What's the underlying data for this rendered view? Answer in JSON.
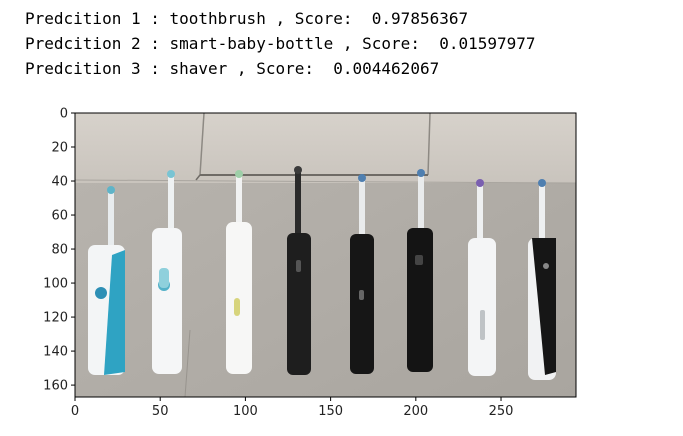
{
  "output": {
    "lines": [
      "Predcition 1 : toothbrush , Score:  0.97856367",
      "Predcition 2 : smart-baby-bottle , Score:  0.01597977",
      "Predcition 3 : shaver , Score:  0.004462067"
    ]
  },
  "chart_data": {
    "type": "image",
    "xlim": [
      0,
      294
    ],
    "ylim": [
      167,
      0
    ],
    "x_ticks": [
      0,
      50,
      100,
      150,
      200,
      250
    ],
    "y_ticks": [
      0,
      20,
      40,
      60,
      80,
      100,
      120,
      140,
      160
    ],
    "image_content": "eight electric toothbrushes standing on a gray tiled floor against a white wall"
  }
}
